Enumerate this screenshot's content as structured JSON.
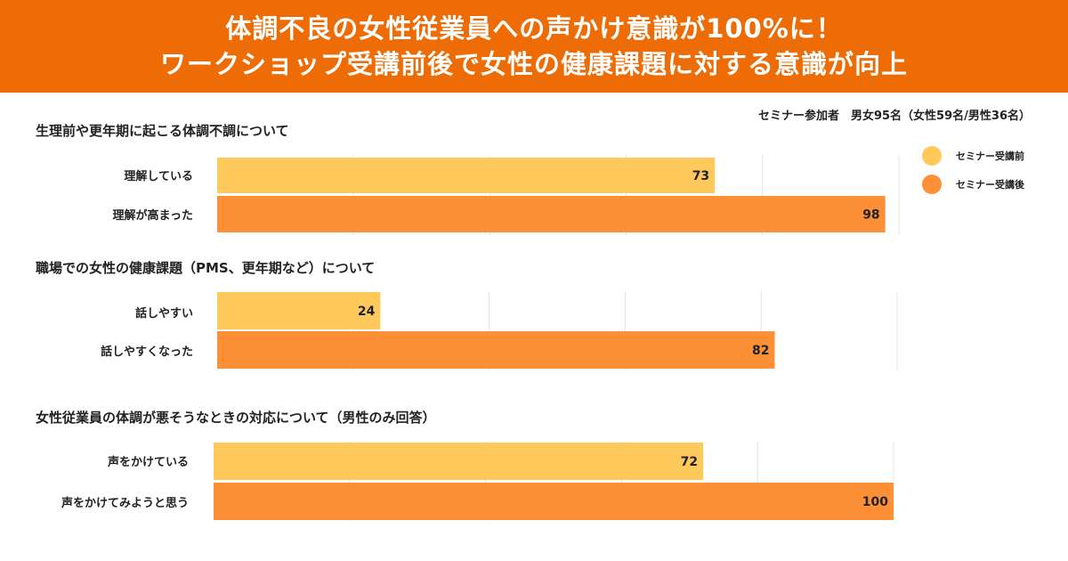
{
  "header": {
    "line1": "体調不良の女性従業員への声かけ意識が100%に！",
    "line2": "ワークショップ受講前後で女性の健康課題に対する意識が向上"
  },
  "participants": "セミナー参加者　男女95名（女性59名/男性36名）",
  "legend": {
    "before": "セミナー受講前",
    "after": "セミナー受講後",
    "before_color": "#ffc95b",
    "after_color": "#fd9036"
  },
  "chart_data": {
    "type": "bar",
    "orientation": "horizontal",
    "xlim": [
      0,
      100
    ],
    "groups": [
      {
        "title": "生理前や更年期に起こる体調不調について",
        "bars": [
          {
            "label": "理解している",
            "series": "セミナー受講前",
            "value": 73
          },
          {
            "label": "理解が高まった",
            "series": "セミナー受講後",
            "value": 98
          }
        ]
      },
      {
        "title": "職場での女性の健康課題（PMS、更年期など）について",
        "bars": [
          {
            "label": "話しやすい",
            "series": "セミナー受講前",
            "value": 24
          },
          {
            "label": "話しやすくなった",
            "series": "セミナー受講後",
            "value": 82
          }
        ]
      },
      {
        "title": "女性従業員の体調が悪そうなときの対応について（男性のみ回答）",
        "bars": [
          {
            "label": "声をかけている",
            "series": "セミナー受講前",
            "value": 72
          },
          {
            "label": "声をかけてみようと思う",
            "series": "セミナー受講後",
            "value": 100
          }
        ]
      }
    ]
  }
}
